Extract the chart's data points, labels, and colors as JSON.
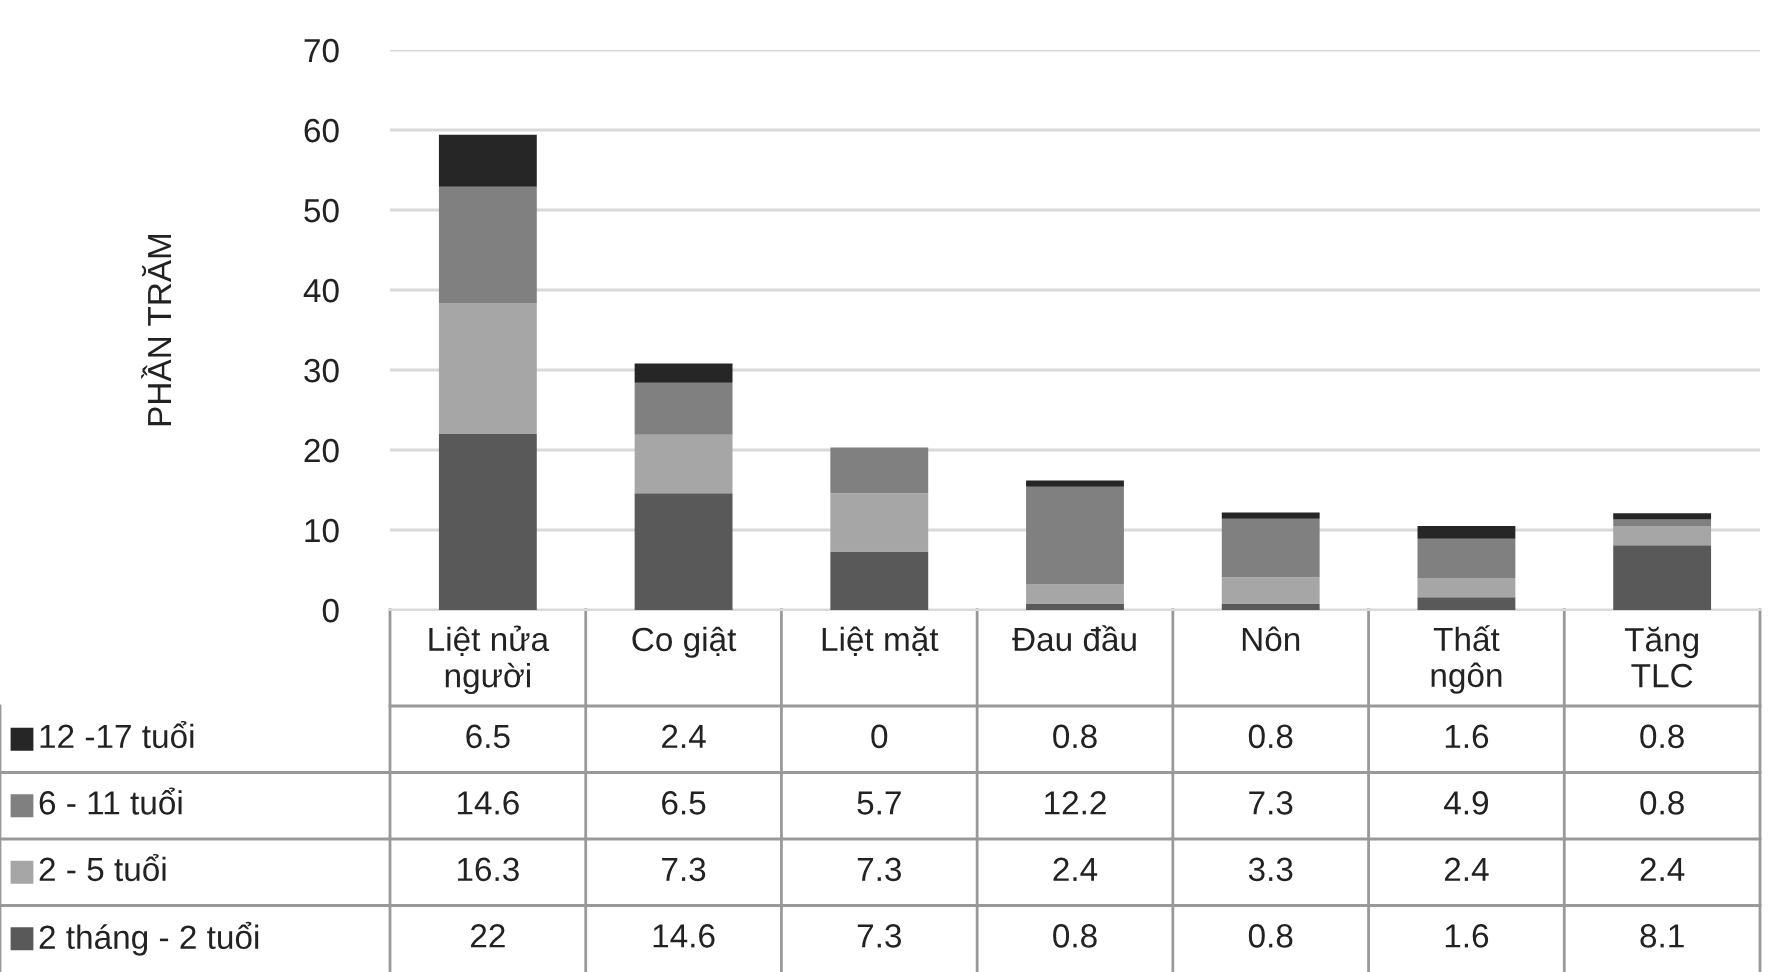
{
  "chart_data": {
    "type": "bar",
    "stacked": true,
    "ylabel": "PHẦN TRĂM",
    "categories": [
      "Liệt nửa\nngười",
      "Co giật",
      "Liệt mặt",
      "Đau đầu",
      "Nôn",
      "Thất\nngôn",
      "Tăng\nTLC"
    ],
    "series": [
      {
        "name": "2 tháng - 2 tuổi",
        "color": "#595959",
        "values": [
          22,
          14.6,
          7.3,
          0.8,
          0.8,
          1.6,
          8.1
        ]
      },
      {
        "name": "2 - 5 tuổi",
        "color": "#a6a6a6",
        "values": [
          16.3,
          7.3,
          7.3,
          2.4,
          3.3,
          2.4,
          2.4
        ]
      },
      {
        "name": "6 - 11 tuổi",
        "color": "#808080",
        "values": [
          14.6,
          6.5,
          5.7,
          12.2,
          7.3,
          4.9,
          0.8
        ]
      },
      {
        "name": "12 -17 tuổi",
        "color": "#262626",
        "values": [
          6.5,
          2.4,
          0,
          0.8,
          0.8,
          1.6,
          0.8
        ]
      }
    ],
    "ylim": [
      0,
      70
    ],
    "yticks": [
      0,
      10,
      20,
      30,
      40,
      50,
      60,
      70
    ],
    "grid": "y",
    "legend": "bottom left",
    "data_labels": true
  }
}
